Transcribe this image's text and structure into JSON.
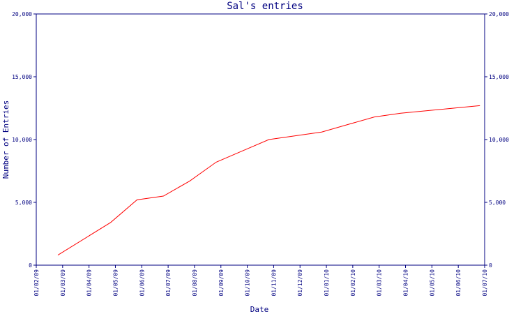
{
  "chart_data": {
    "type": "line",
    "title": "Sal's entries",
    "xlabel": "Date",
    "ylabel": "Number of Entries",
    "x_ticks": [
      "01/02/09",
      "01/03/09",
      "01/04/09",
      "01/05/09",
      "01/06/09",
      "01/07/09",
      "01/08/09",
      "01/09/09",
      "01/10/09",
      "01/11/09",
      "01/12/09",
      "01/01/10",
      "01/02/10",
      "01/03/10",
      "01/04/10",
      "01/05/10",
      "01/06/10",
      "01/07/10"
    ],
    "y_ticks": [
      "0",
      "5,000",
      "10,000",
      "15,000",
      "20,000"
    ],
    "ylim": [
      0,
      20000
    ],
    "grid": false,
    "series_color": "#ff0000",
    "axis_color": "#000080",
    "series": [
      {
        "x": [
          "01/03/09",
          "01/05/09",
          "01/06/09",
          "01/07/09",
          "01/08/09",
          "01/09/09",
          "01/10/09",
          "01/11/09",
          "01/12/09",
          "01/01/10",
          "01/02/10",
          "01/03/10",
          "01/04/10",
          "01/05/10",
          "01/06/10",
          "01/07/10"
        ],
        "values": [
          800,
          3400,
          5200,
          5500,
          6700,
          8200,
          9100,
          10000,
          10300,
          10600,
          11200,
          11800,
          12100,
          12300,
          12500,
          12700
        ]
      }
    ]
  }
}
